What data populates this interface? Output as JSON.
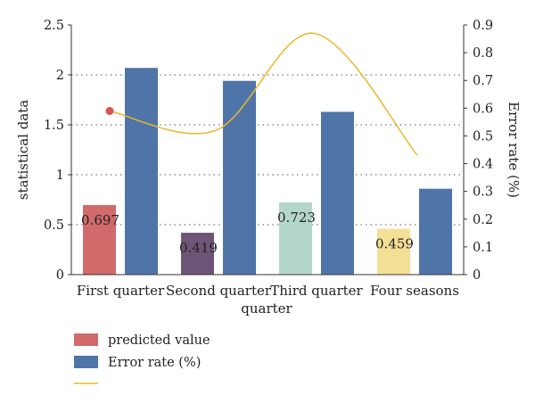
{
  "chart_data": {
    "type": "bar",
    "xlabel": "quarter",
    "ylabel_left": "statistical data",
    "ylabel_right": "Error rate (%)",
    "categories": [
      "First quarter",
      "Second quarter",
      "Third quarter",
      "Four seasons"
    ],
    "ylim_left": [
      0,
      2.5
    ],
    "yticks_left": [
      "0",
      "0.5",
      "1",
      "1.5",
      "2",
      "2.5"
    ],
    "ylim_right": [
      0,
      0.9
    ],
    "yticks_right": [
      "0",
      "0.1",
      "0.2",
      "0.3",
      "0.4",
      "0.5",
      "0.6",
      "0.7",
      "0.8",
      "0.9"
    ],
    "grid": "horizontal dotted",
    "legend_position": "bottom-left",
    "series": [
      {
        "name": "predicted value",
        "type": "bar",
        "axis": "left",
        "values": [
          0.697,
          0.419,
          0.723,
          0.459
        ],
        "data_labels": [
          "0.697",
          "0.419",
          "0.723",
          "0.459"
        ],
        "colors": [
          "#d16b6b",
          "#6e5476",
          "#b5d7ca",
          "#f4df96"
        ]
      },
      {
        "name": "Error rate (%)",
        "type": "bar",
        "axis": "left",
        "values": [
          2.07,
          1.94,
          1.63,
          0.86
        ],
        "color": "#4f74a8"
      },
      {
        "name": "",
        "type": "line",
        "axis": "right",
        "values": [
          0.59,
          0.52,
          0.87,
          0.43
        ],
        "color": "#e8b92a",
        "marker_color": "#d9534f"
      }
    ]
  }
}
